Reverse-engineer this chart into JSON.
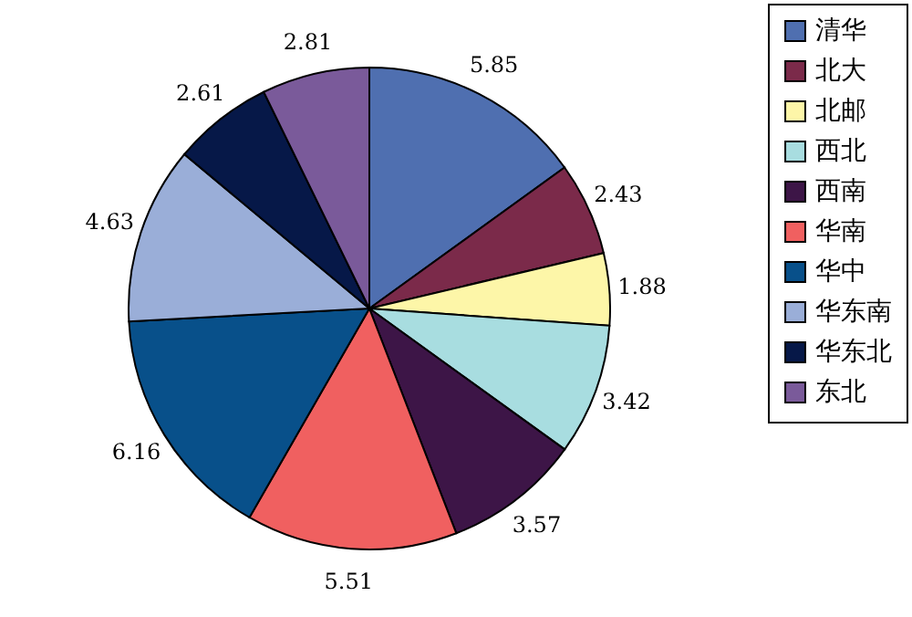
{
  "chart_data": {
    "type": "pie",
    "categories": [
      "清华",
      "北大",
      "北邮",
      "西北",
      "西南",
      "华南",
      "华中",
      "华东南",
      "华东北",
      "东北"
    ],
    "values": [
      5.85,
      2.43,
      1.88,
      3.42,
      3.57,
      5.51,
      6.16,
      4.63,
      2.61,
      2.81
    ],
    "colors": [
      "#4f6fb0",
      "#7b2a4a",
      "#fdf6a8",
      "#a8dde0",
      "#3d1547",
      "#f06060",
      "#08508a",
      "#9aaed8",
      "#061848",
      "#7a5a9a"
    ],
    "data_labels": true,
    "legend": "right"
  }
}
